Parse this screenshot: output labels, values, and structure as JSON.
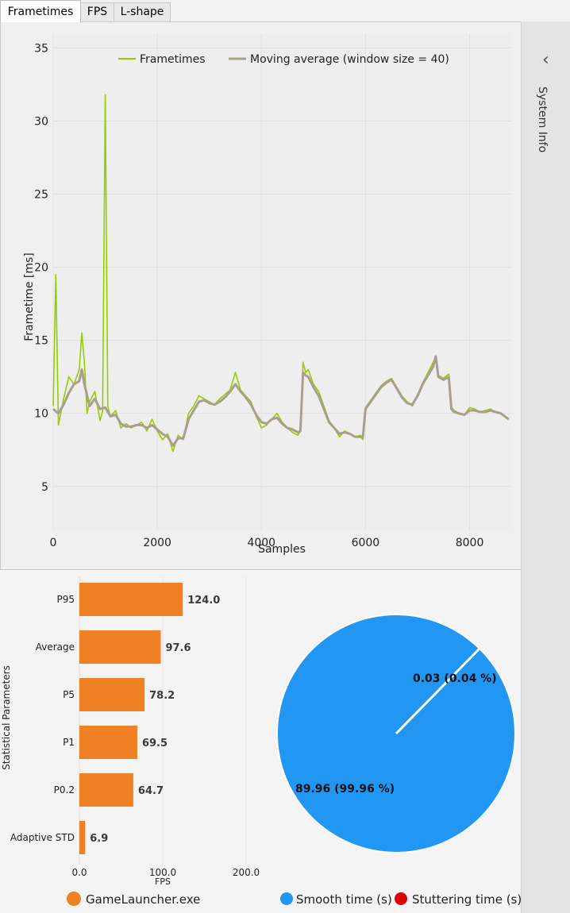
{
  "tabs": [
    {
      "label": "Frametimes",
      "active": true
    },
    {
      "label": "FPS",
      "active": false
    },
    {
      "label": "L-shape",
      "active": false
    }
  ],
  "sidepanel": {
    "label": "System Info",
    "icon": "chevron-left-icon"
  },
  "frametime_chart": {
    "legend": [
      "Frametimes",
      "Moving average (window size = 40)"
    ],
    "ylabel": "Frametime [ms]",
    "xlabel": "Samples",
    "yticks": [
      "5",
      "10",
      "15",
      "20",
      "25",
      "30",
      "35"
    ],
    "xticks": [
      "0",
      "2000",
      "4000",
      "6000",
      "8000"
    ]
  },
  "bar_chart": {
    "ylabel": "Statistical Parameters",
    "xlabel": "FPS",
    "xticks": [
      "0.0",
      "100.0",
      "200.0"
    ],
    "legend": "GameLauncher.exe"
  },
  "pie_chart": {
    "smooth_label": "89.96 (99.96 %)",
    "stutter_label": "0.03 (0.04 %)",
    "legend": [
      "Smooth time (s)",
      "Stuttering time (s)"
    ]
  },
  "chart_data": [
    {
      "type": "line",
      "xlabel": "Samples",
      "ylabel": "Frametime [ms]",
      "xlim": [
        0,
        8800
      ],
      "ylim": [
        2,
        36
      ],
      "grid": true,
      "legend_position": "top",
      "colors": {
        "frametimes": "#99cc00",
        "moving_average": "#a89f8e"
      },
      "series": [
        {
          "name": "Frametimes",
          "x": [
            0,
            50,
            100,
            200,
            300,
            400,
            500,
            550,
            600,
            650,
            700,
            800,
            900,
            950,
            1000,
            1050,
            1100,
            1200,
            1300,
            1400,
            1500,
            1600,
            1700,
            1800,
            1900,
            2000,
            2100,
            2200,
            2300,
            2400,
            2500,
            2600,
            2700,
            2800,
            2900,
            3000,
            3100,
            3200,
            3300,
            3400,
            3500,
            3600,
            3700,
            3800,
            3900,
            4000,
            4100,
            4200,
            4300,
            4400,
            4500,
            4600,
            4700,
            4750,
            4800,
            4850,
            4900,
            5000,
            5100,
            5200,
            5300,
            5400,
            5500,
            5600,
            5700,
            5800,
            5900,
            5950,
            6000,
            6100,
            6200,
            6300,
            6400,
            6500,
            6600,
            6700,
            6800,
            6900,
            7000,
            7100,
            7200,
            7300,
            7350,
            7400,
            7500,
            7600,
            7650,
            7700,
            7800,
            7900,
            8000,
            8100,
            8200,
            8300,
            8400,
            8500,
            8600,
            8750
          ],
          "values": [
            10.5,
            19.5,
            9.2,
            11.0,
            12.5,
            12.0,
            13.0,
            15.5,
            13.5,
            10.0,
            10.8,
            11.5,
            9.5,
            10.2,
            31.8,
            10.5,
            9.8,
            10.2,
            9.0,
            9.3,
            9.0,
            9.2,
            9.4,
            8.8,
            9.6,
            8.8,
            8.2,
            8.6,
            7.4,
            8.5,
            8.2,
            10.0,
            10.5,
            11.2,
            11.0,
            10.8,
            10.6,
            11.0,
            11.3,
            11.6,
            12.8,
            11.6,
            11.2,
            10.8,
            9.8,
            9.0,
            9.2,
            9.6,
            10.0,
            9.4,
            9.0,
            8.7,
            8.5,
            8.8,
            13.5,
            12.8,
            13.0,
            12.0,
            11.5,
            10.5,
            9.5,
            9.0,
            8.4,
            8.8,
            8.6,
            8.4,
            8.5,
            8.2,
            10.4,
            10.9,
            11.4,
            11.9,
            12.2,
            12.4,
            11.8,
            11.2,
            10.8,
            10.5,
            11.3,
            12.1,
            12.8,
            13.5,
            13.8,
            12.6,
            12.4,
            12.7,
            10.4,
            10.2,
            10.0,
            9.9,
            10.4,
            10.3,
            10.1,
            10.2,
            10.3,
            10.1,
            10.0,
            9.6
          ]
        },
        {
          "name": "Moving average (window size = 40)",
          "x": [
            0,
            100,
            200,
            300,
            400,
            500,
            550,
            600,
            700,
            800,
            900,
            1000,
            1100,
            1200,
            1300,
            1400,
            1500,
            1600,
            1700,
            1800,
            1900,
            2000,
            2100,
            2200,
            2300,
            2400,
            2500,
            2600,
            2700,
            2800,
            2900,
            3000,
            3100,
            3200,
            3300,
            3400,
            3500,
            3600,
            3700,
            3800,
            3900,
            4000,
            4100,
            4200,
            4300,
            4400,
            4500,
            4600,
            4700,
            4750,
            4800,
            4850,
            4900,
            5000,
            5100,
            5200,
            5300,
            5400,
            5500,
            5600,
            5700,
            5800,
            5900,
            5950,
            6000,
            6100,
            6200,
            6300,
            6400,
            6500,
            6600,
            6700,
            6800,
            6900,
            7000,
            7100,
            7200,
            7300,
            7350,
            7400,
            7500,
            7600,
            7650,
            7700,
            7800,
            7900,
            8000,
            8100,
            8200,
            8300,
            8400,
            8500,
            8600,
            8750
          ],
          "values": [
            10.3,
            10.0,
            10.6,
            11.4,
            12.0,
            12.2,
            13.0,
            12.0,
            10.5,
            11.0,
            10.3,
            10.4,
            9.8,
            9.9,
            9.3,
            9.1,
            9.1,
            9.2,
            9.2,
            9.0,
            9.2,
            8.9,
            8.6,
            8.4,
            7.8,
            8.3,
            8.3,
            9.6,
            10.2,
            10.8,
            10.9,
            10.7,
            10.6,
            10.8,
            11.1,
            11.5,
            12.0,
            11.5,
            11.1,
            10.6,
            9.9,
            9.4,
            9.3,
            9.6,
            9.7,
            9.3,
            9.0,
            8.9,
            8.7,
            8.8,
            12.8,
            12.6,
            12.5,
            11.8,
            11.2,
            10.3,
            9.4,
            9.0,
            8.6,
            8.7,
            8.6,
            8.4,
            8.4,
            8.4,
            10.3,
            10.8,
            11.3,
            11.8,
            12.1,
            12.3,
            11.7,
            11.1,
            10.7,
            10.6,
            11.2,
            12.0,
            12.6,
            13.2,
            13.9,
            12.5,
            12.3,
            12.5,
            10.3,
            10.1,
            10.0,
            9.9,
            10.2,
            10.2,
            10.1,
            10.1,
            10.2,
            10.1,
            10.0,
            9.6
          ]
        }
      ]
    },
    {
      "type": "bar",
      "orientation": "horizontal",
      "categories": [
        "P95",
        "Average",
        "P5",
        "P1",
        "P0.2",
        "Adaptive STD"
      ],
      "values": [
        124.0,
        97.6,
        78.2,
        69.5,
        64.7,
        6.9
      ],
      "value_labels": [
        "124.0",
        "97.6",
        "78.2",
        "69.5",
        "64.7",
        "6.9"
      ],
      "xlim": [
        0,
        200
      ],
      "xlabel": "FPS",
      "ylabel": "Statistical Parameters",
      "series": [
        {
          "name": "GameLauncher.exe",
          "color": "#f08024"
        }
      ]
    },
    {
      "type": "pie",
      "labels": [
        "Smooth time (s)",
        "Stuttering time (s)"
      ],
      "values": [
        89.96,
        0.03
      ],
      "percent": [
        99.96,
        0.04
      ],
      "colors": [
        "#2196f3",
        "#e00000"
      ]
    }
  ]
}
